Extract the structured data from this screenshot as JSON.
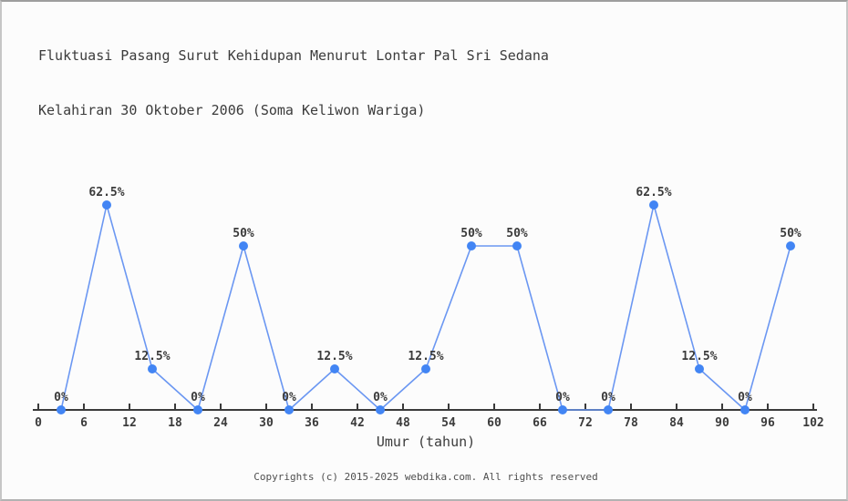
{
  "header": {
    "title_line1": "Fluktuasi Pasang Surut Kehidupan Menurut Lontar Pal Sri Sedana",
    "title_line2": "Kelahiran 30 Oktober 2006 (Soma Keliwon Wariga)"
  },
  "footer": {
    "text": "Copyrights (c) 2015-2025 webdika.com. All rights reserved"
  },
  "colors": {
    "line": "#6b97f2",
    "marker": "#4285f4",
    "axis": "#3a3a3a",
    "text": "#3b3b3b",
    "background": "#fcfcfc"
  },
  "chart_data": {
    "type": "line",
    "title": "Fluktuasi Pasang Surut Kehidupan Menurut Lontar Pal Sri Sedana Kelahiran 30 Oktober 2006 (Soma Keliwon Wariga)",
    "x": [
      3,
      9,
      15,
      21,
      27,
      33,
      39,
      45,
      51,
      57,
      63,
      69,
      75,
      81,
      87,
      93,
      99
    ],
    "values": [
      0,
      62.5,
      12.5,
      0,
      50,
      0,
      12.5,
      0,
      12.5,
      50,
      50,
      0,
      0,
      62.5,
      12.5,
      0,
      50
    ],
    "point_labels": [
      "0%",
      "62.5%",
      "12.5%",
      "0%",
      "50%",
      "0%",
      "12.5%",
      "0%",
      "12.5%",
      "50%",
      "50%",
      "0%",
      "0%",
      "62.5%",
      "12.5%",
      "0%",
      "50%"
    ],
    "xlabel": "Umur (tahun)",
    "ylabel": "",
    "xticks": [
      0,
      6,
      12,
      18,
      24,
      30,
      36,
      42,
      48,
      54,
      60,
      66,
      72,
      78,
      84,
      90,
      96,
      102
    ],
    "xlim": [
      0,
      102
    ],
    "ylim": [
      0,
      100
    ],
    "grid": false,
    "legend": null,
    "marker": "circle",
    "y_axis_shown": false
  }
}
